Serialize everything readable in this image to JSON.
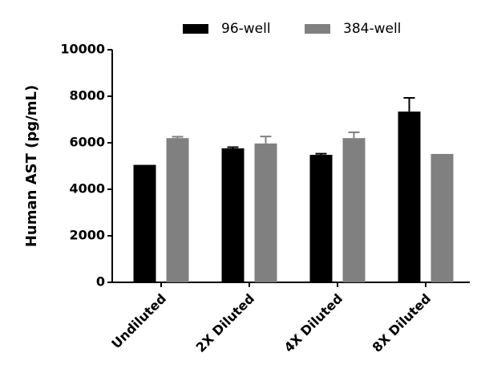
{
  "chart_data": {
    "type": "bar",
    "y_label": "Human AST (pg/mL)",
    "categories": [
      "Undiluted",
      "2X Diluted",
      "4X Diluted",
      "8X Diluted"
    ],
    "series": [
      {
        "name": "96-well",
        "color": "#000000",
        "values": [
          5050,
          5760,
          5480,
          7340
        ],
        "errors": [
          0,
          50,
          50,
          590
        ]
      },
      {
        "name": "384-well",
        "color": "#808080",
        "values": [
          6200,
          5970,
          6200,
          5520
        ],
        "errors": [
          60,
          300,
          250,
          0
        ]
      }
    ],
    "ylim": [
      0,
      10000
    ],
    "yticks": [
      0,
      2000,
      4000,
      6000,
      8000,
      10000
    ]
  }
}
